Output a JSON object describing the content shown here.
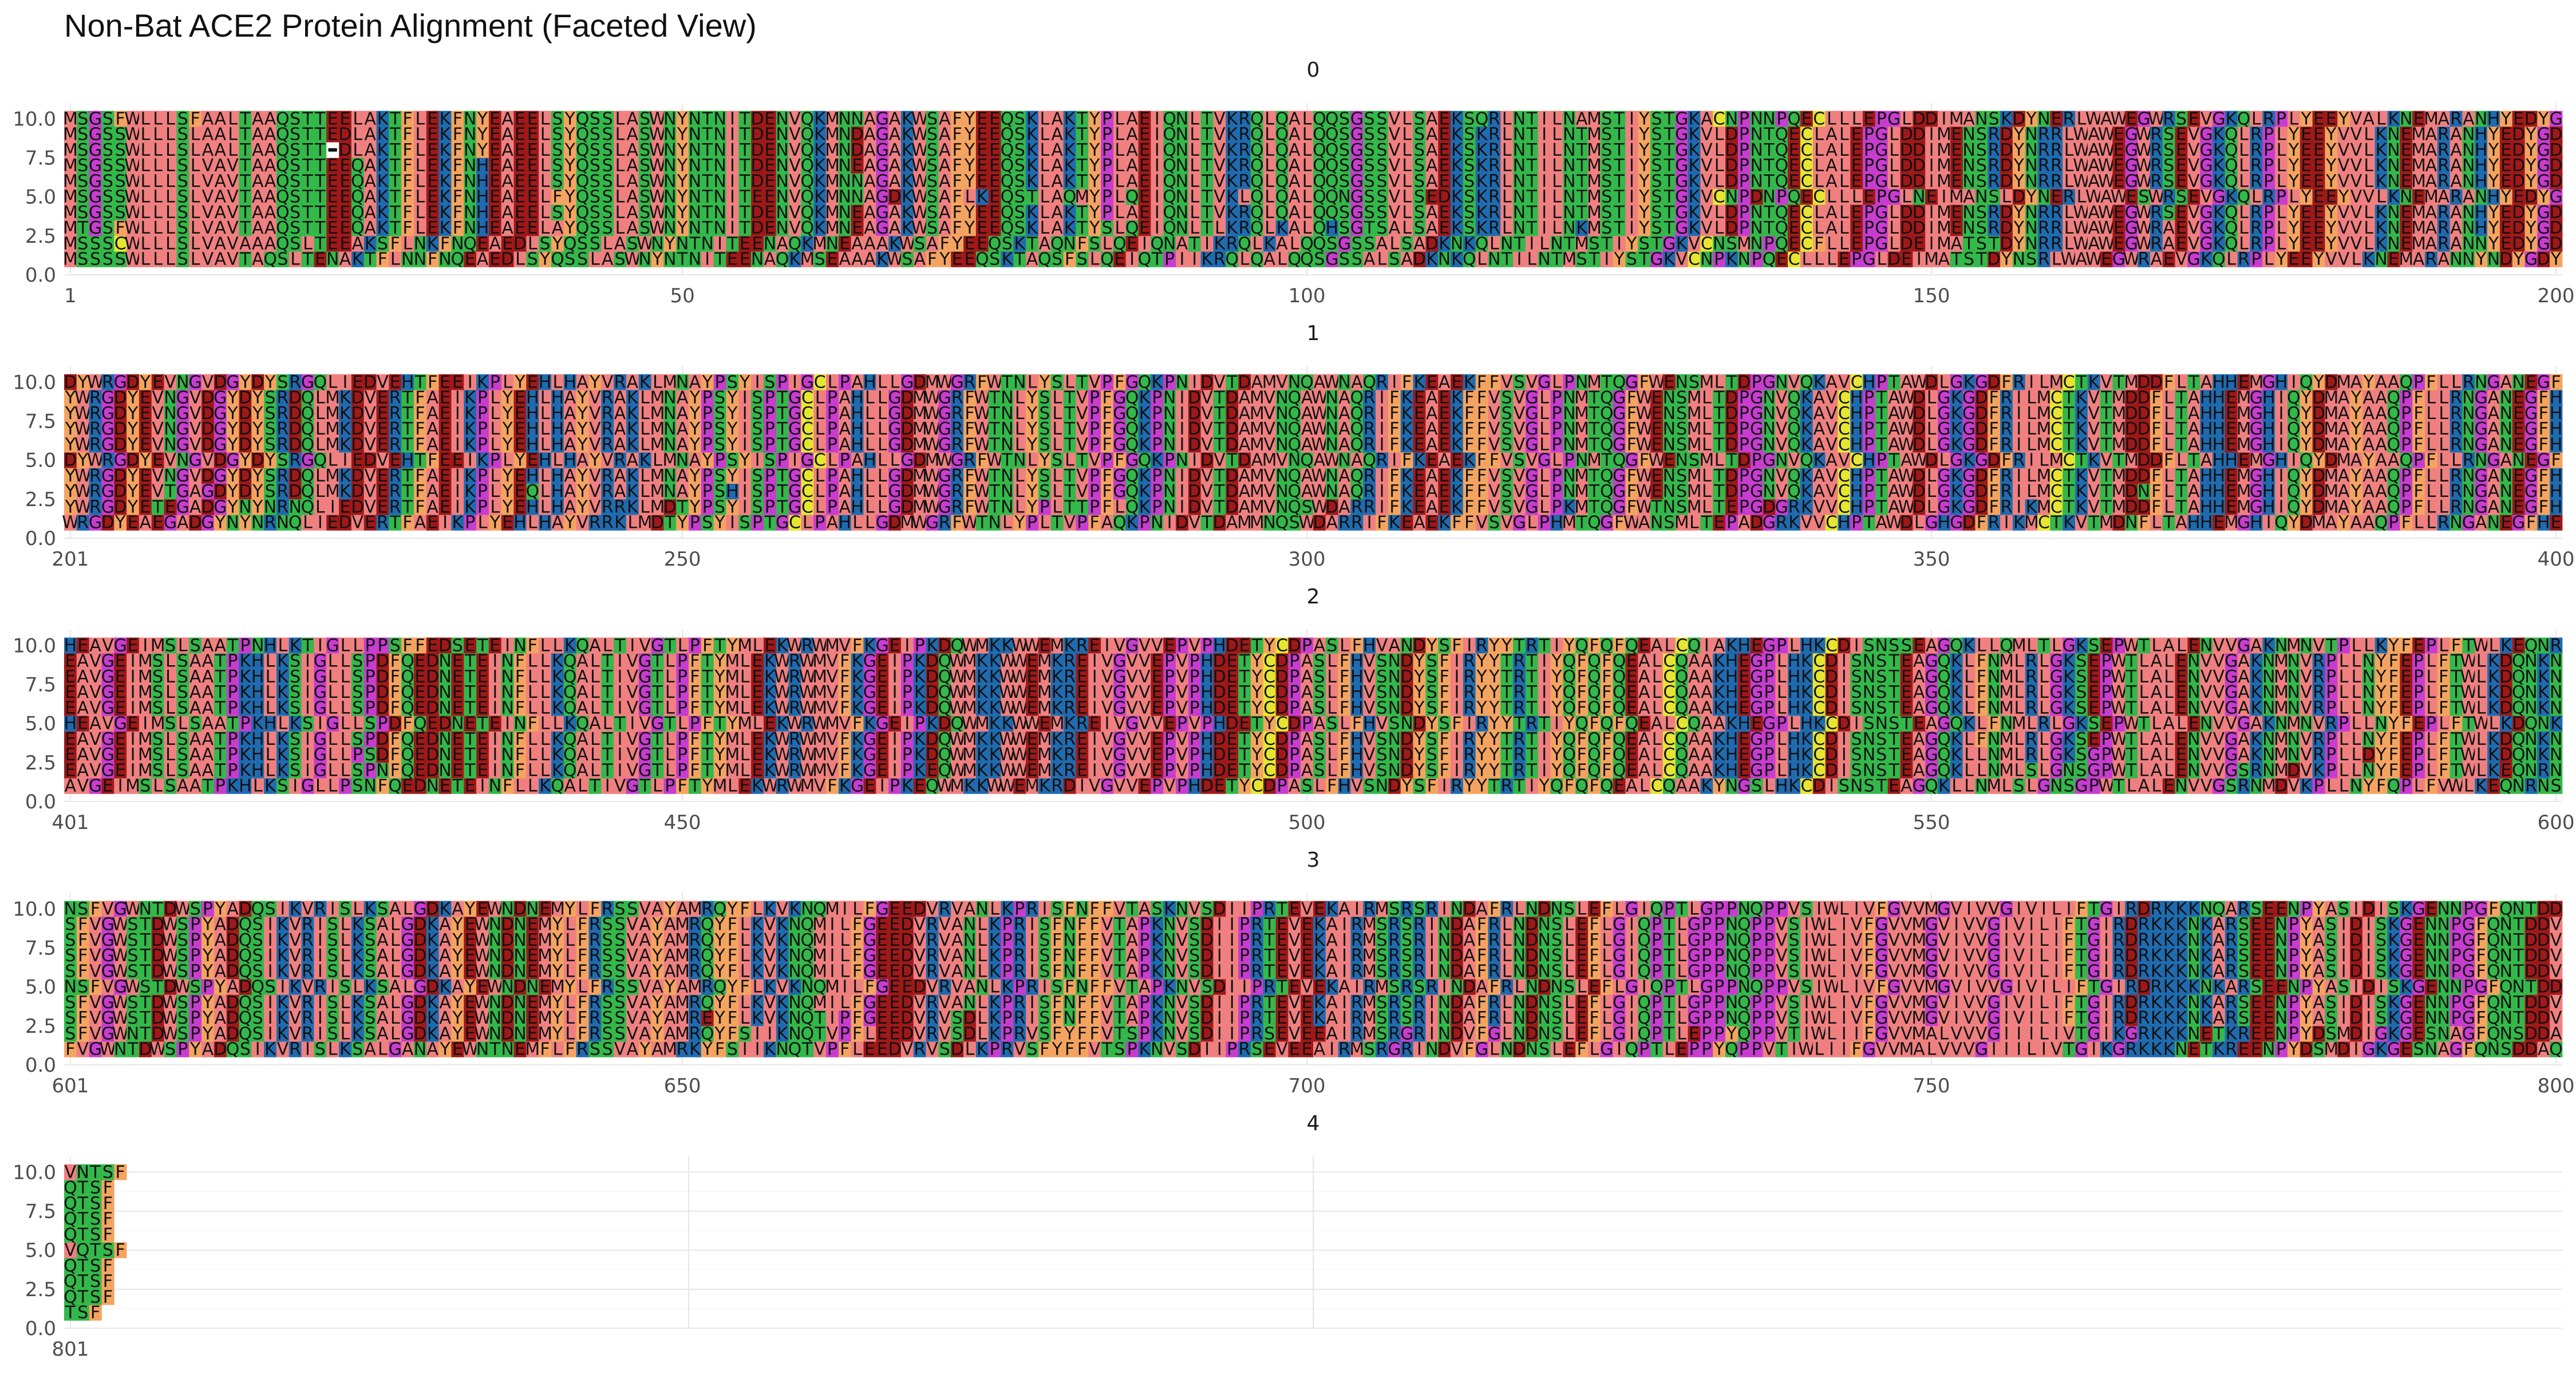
{
  "chart_data": {
    "type": "heatmap",
    "title": "Non-Bat ACE2 Protein Alignment (Faceted View)",
    "xlabel": "",
    "ylabel": "",
    "grid": true,
    "facet_labels": [
      "0",
      "1",
      "2",
      "3",
      "4"
    ],
    "facet_ranges": [
      [
        1,
        200
      ],
      [
        201,
        400
      ],
      [
        401,
        600
      ],
      [
        601,
        800
      ],
      [
        801,
        1000
      ]
    ],
    "x_tick_labels": [
      [
        "1",
        "50",
        "100",
        "150",
        "200"
      ],
      [
        "201",
        "250",
        "300",
        "350",
        "400"
      ],
      [
        "401",
        "450",
        "500",
        "550",
        "600"
      ],
      [
        "601",
        "650",
        "700",
        "750",
        "800"
      ],
      [
        "801"
      ]
    ],
    "y_tick_labels": [
      "0.0",
      "2.5",
      "5.0",
      "7.5",
      "10.0"
    ],
    "ylim": [
      0,
      11
    ],
    "row_y_values": [
      1,
      2,
      3,
      4,
      5,
      6,
      7,
      8,
      9,
      10
    ],
    "colors": {
      "A": "#f08080",
      "V": "#f08080",
      "L": "#f08080",
      "I": "#f08080",
      "M": "#f08080",
      "W": "#f08080",
      "F": "#f4a460",
      "Y": "#f4a460",
      "S": "#33b84a",
      "T": "#33b84a",
      "N": "#33b84a",
      "Q": "#33b84a",
      "K": "#1f6bb0",
      "R": "#1f6bb0",
      "H": "#1f6bb0",
      "D": "#a01818",
      "E": "#a01818",
      "G": "#c83cd0",
      "P": "#c83cd0",
      "C": "#e6e632",
      "-": "#ffffff"
    },
    "sequences": [
      "MSSSSWLLLSLVAVTAQSLTENAKTFLNNFNQEAEDLSYQSSLASWNYNTNITEENAQKMSEAAAKWSAFYEEQSKTAQSFSLQEIQTPIIKRQLQALQQSGSSALSADKNKQLNTILNTMSTIYSTGKVCNPKNPQECLLLEPGLDEIMATSTDYNSRLWAWEGWRAEVGKQLRPLYEEYVVLKNEMARANNYNDYGDYWRGDYEAEGADGYNYNRNQLIEDVERTFAEIKPLYEHLHAYVRRKLMDTYPSYISPTGCLPAHLLGDMWGRFWTNLYPLTVPFAQKPNIDVTDAMMNQSWDARRIFKEAEKFFVSVGLPHMTQGFWANSMLTEPADGRKVVCHPTAWDLGHGDFRIKMCTKVTMDNFLTAHHEMGHIQYDMAYAAQPFLLRNGANEGFHEAVGEIMSLSAATPKHLKSIGLLPSNFQEDNETEINFLLKQALTIVGTLPFTYMLEKWRWMVFKGEIPKEQWMKKWWEMKRDIVGVVEPVPHDETYCDPASLFHVSNDYSFIRYYTRTIYQFQFQEALCQAAKYNGSLHKCDISNSTEAGQKLLNMLSLGNSGPWTLALENVVGSRNMDVKPLLNYFQPLFVWLKEQNRNSFVGWNTDWSPYADQSIKVRISLKSALGANAYEWNTNEMFLFRSSVAYAMRKYFSIIKNQTVPFLEEDVRVSDLKPRVSFYFFVTSPKNVSDIIPRSEVEEAIRMSRGRINDVFGLNDNSLEFLGIQPTLEPPYQPPVTIWLIIFGVVMALVVVGIIILIVTGIKGRKKKNETKREENPYDSMDIGKGESNAGFQNSDDAQTSF",
      "MSSSCWLLLSLVAVAAAQSLTEEAKSFLNKFNQEAEDLSYQSSLASWNYNTNITEENAQKMNEAAAKWSAFYEEQSKTAQNFSLQEIQNATIKRQLKALQQSGSSALSADKNKQLNTILNTMSTIYSTGKVCNSMNPQECFLLEPGLDEIMATSTDYNRRLWAWEGWRAEVGKQLRPLYEEYVVLKNEMARANNYEDYGDYWRGDYETEGADGYNYNRNQLIEDVERTFAEIKPLYEHLHAYVRRKLMDTYPSYISPTGCLPAHLLGDMWGRFWTNLYPLTTPFLQKPNIDVTDAMVNQSWDARRIFKEAEKFFVSVGLPKMTQGFWTNSMLTEPGDGRKVVCHPTAWDLGKGDFRIKMCTKVTMDDFLTAHHEMGHIQYDMAYAAQPFLLRNGANEGFHEAVGEIMSLSAATPKHLKSIGLLSPNFQEDNETEINFLLKQALTIVGTLPFTYMLEKWRWMVFKGEIPKEQWMKKWWEMKREIVGVVEPVPHDETYCDPASLFHVSNDYSFIRYYTRTIYQFQFQEALCQAAKHEGPLHKCDISNSTEAGQKLLNMLSLGNSGPWTLALENVVGSRNMDVKPLLNYFEPLFTWLKEQNRNSFVGWNTDWSPYADQSIKVRISLKSALGDKAYEWNDNEMYLFRSSVAYAMRQYFSIIKNQTVPFLEEDVRVSDLKPRVSFYFFVTSPKNVSDIIPRSEVEEAIRMSRGRINDVFGLNDNSLEFLGIQPTLEPPYQPPVTIWLIIFGVVMALVVVGIIILIVTGIKGRKKKNETKREENPYDSMDIGKGESNAGFQNSDDAQTSF",
      "MTGSFWLLLSLVAVTAAQSTTEEQAKTFLEKFNHEAEELAYQSSLASWNYNTNITDENVQKMNEAGAKWSAFYEEQSKLAKTYSLQEIQNLTLKRQLKALQHSGTSALSAEKSKRLNTILNKMSTIYSTGKVLDPNTQECLALEPGLDDIMENSRDYNRRLWAWEGWRAEVGKQLRPLYEEYVVLKNEMARANHYEDYGDYWRGDYEVTGAGDYDYSRDQLMKDVERTFAEIKPLYEQLHAYVRAKLMNAYPSHISPTGCLPAHLLGDMWGRFWTNLYSLTVPFGQKPNIDVTDAMVNQAWNAQRIFKEAEKFFVSVGLPNMTQGFWENSMLTDPGNVQKAVCHPTAWDLGKGDFRILMCTKVTMDNFLTAHHEMGHIQYDMAYAAQPFLLRNGANEGFHEAVGEIMSLSAATPKHLKSIGLLPSDFQEDNETEINFLLKQALTIVGTLPFTYMLEKWRWMVFKGEIPKDQWMKKWWEMKREIVGVVEPVPHDETYCDPASLFHVSNDYSFIRYYTRTIYQFQFQEALCQAAKHEGPLHKCDISNSTEAGQKLLNMLRLGKSGPWTLALENVVGAKNMNVRPLLDYFEPLFTWLKDQNKNSFVGWSTDWSPYADQSIKVRISLKSALGDKAYEWNDNEMYLFRSSVAYAMREYFLKVKNQTIPFGEEDVRVSDLKPRISFNFFVTAPKNVSDIIPRTEVEKAIRMSRSRINDAFRLNDNSLEFLGIQPTLGPPNQPPVSIWLIVFGVVMGVIVVGIVILIFTGIRDRKKKNKARSEENPYASIDISKGENNPGFQNTDDVQTSF",
      "MSGSSWLLLSLVAVTAAQSTTEEQAKTFLEKFNHEAEELSYQSSLASWNYNTNITDENVQKMNEAGAKWSAFYEEQSKLAKTYPLAEIQNLTVKRQLQALQQSGSSVLSAEKSKRLNTILNTMSTIYSTGKVLDPNTQECLALEPGLDDIMENSRDYNRRLWAWEGWRSEVGKQLRPLYEEYVVLKNEMARANHYEDYGDYWRGDYEVNGVDGYDYSRDQLMKDVERTFAEIKPLYEHLHAYVRAKLMNAYPSYISPTGCLPAHLLGDMWGRFWTNLYSLTVPFGQKPNIDVTDAMVNQAWNAQRIFKEAEKFFVSVGLPNMTQGFWENSMLTDPGNVQKAVCHPTAWDLGKGDFRILMCTKVTMDDFLTAHHEMGHIQYDMAYAAQPFLLRNGANEGFHEAVGEIMSLSAATPKHLKSIGLLSPDFQEDNETEINFLLKQALTIVGTLPFTYMLEKWRWMVFKGEIPKDQWMKKWWEMKREIVGVVEPVPHDETYCDPASLFHVSNDYSFIRYYTRTIYQFQFQEALCQAAKHEGPLHKCDISNSTEAGQKLFNMLRLGKSEPWTLALENVVGAKNMNVRPLLNYFEPLFTWLKDQNKNSFVGWSTDWSPYADQSIKVRISLKSALGDKAYEWNDNEMYLFRSSVAYAMRQYFLKVKNQMILFGEEDVRVANLKPRISFNFFVTAPKNVSDIIPRTEVEKAIRMSRSRINDAFRLNDNSLEFLGIQPTLGPPNQPPVSIWLIVFGVVMGVIVVGIVILIFTGIRDRKKKNKARSEENPYASIDISKGENNPGFQNTDDVQTSF",
      "MSGSSWLLLSLVAVTAAQSTTEEQAKTFLEKFNHEAEELFYQSSLASWNYNTNITEENVQKMNNAGDKWSAFLKEQSTLAQMYPLQEIQNLTVKLQLQALQQNGSSVLSEDKSKRLNTILNTMSTIYSTGKVCNPDNPQECLLLEPGLNEIMANSLDYNERLWAWESWRSEVGKQLRPLYEEYVVLKNEMARANHYEDYGDYWRGDYEVNGVDGYDYSRGQLIEDVEHTFEEIKPLYEHLHAYVRAKLMNAYPSYISPIGCLPAHLLGDMWGRFWTNLYSLTVPFGQKPNIDVTDAMVNQAWNAQRIFKEAEKFFVSVGLPNMTQGFWENSMLTDPGNVQKAVCHPTAWDLGKGDFRILMCTKVTMDDFLTAHHEMGHIQYDMAYAAQPFLLRNGANEGFHEAVGEIMSLSAATPKHLKSIGLLSPDFQEDNETEINFLLKQALTIVGTLPFTYMLEKWRWMVFKGEIPKDQWMKKWWEMKREIVGVVEPVPHDETYCDPASLFHVSNDYSFIRYYTRTIYQFQFQEALCQAAKHEGPLHKCDISNSTEAGQKLFNMLRLGKSEPWTLALENVVGAKNMNVRPLLNYFEPLFTWLKDQNKNSFVGWSTDWSPYADQSIKVRISLKSALGDKAYEWNDNEMYLFRSSVAYAMRQYFLKVKNQMILFGEEDVRVANLKPRISFNFFVTAPKNVSDIIPRTEVEKAIRMSRSRINDAFRLNDNSLEFLGIQPTLGPPNQPPVSIWLIVFGVVMGVIVVGIVILIFTGIRDRKKKNKARSEENPYASIDISKGENNPGFQNTDDVQTSF",
      "MSGSSWLLLSLVAVTAAQSTTEEQAKTFLEKFNHEAEELSYQSSLASWNYNTNITDENVQKMNNAGAKWSAFYEEQSKLAKTYPLAEIQNLTVKRQLQALQQSGSSVLSAEKSKRLNTILNTMSTIYSTGKVLDPNTQECLALEPGLDDIMENSRDYNRRLWAWEGWRSEVGKQLRPLYEEYVVLKNEMARANHYEDYGDYWRGDYEVNGVDGYDYSRDQLMKDVERTFAEIKPLYEHLHAYVRAKLMNAYPSYISPTGCLPAHLLGDMWGRFWTNLYSLTVPFGQKPNIDVTDAMVNQAWNAQRIFKEAEKFFVSVGLPNMTQGFWENSMLTDPGNVQKAVCHPTAWDLGKGDFRILMCTKVTMDDFLTAHHEMGHIQYDMAYAAQPFLLRNGANEGFHEAVGEIMSLSAATPKHLKSIGLLSPDFQEDNETEINFLLKQALTIVGTLPFTYMLEKWRWMVFKGEIPKDQWMKKWWEMKREIVGVVEPVPHDETYCDPASLFHVSNDYSFIRYYTRTIYQFQFQEALCQAAKHEGPLHKCDISNSTEAGQKLFNMLRLGKSEPWTLALENVVGAKNMNVRPLLNYFEPLFTWLKDQNKNSFVGWSTDWSPYADQSIKVRISLKSALGDKAYEWNDNEMYLFRSSVAYAMRQYFLKVKNQMILFGEEDVRVANLKPRISFNFFVTAPKNVSDIIPRTEVEKAIRMSRSRINDAFRLNDNSLEFLGIQPTLGPPNQPPVSIWLIVFGVVMGVIVVGIVILIFTGIRDRKKKNKARSEENPYASIDISKGENNPGFQNTDDVQTSF",
      "MSGSSWLLLSLVAVTAAQSTTEEQAKTFLEKFNHEAEELSYQSSLASWNYNTNITDENVQKMNEAGAKWSAFYEEQSKLAKTYPLAEIQNLTVKRQLQALQQSGSSVLSAEKSKRLNTILNTMSTIYSTGKVLDPNTQECLALEPGLDDIMENSRDYNRRLWAWEGWRSEVGKQLRPLYEEYVVLKNEMARANHYEDYGDYWRGDYEVNGVDGYDYSRDQLMKDVERTFAEIKPLYEHLHAYVRAKLMNAYPSYISPTGCLPAHLLGDMWGRFWTNLYSLTVPFGQKPNIDVTDAMVNQAWNAQRIFKEAEKFFVSVGLPNMTQGFWENSMLTDPGNVQKAVCHPTAWDLGKGDFRILMCTKVTMDDFLTAHHEMGHIQYDMAYAAQPFLLRNGANEGFHEAVGEIMSLSAATPKHLKSIGLLSPDFQEDNETEINFLLKQALTIVGTLPFTYMLEKWRWMVFKGEIPKDQWMKKWWEMKREIVGVVEPVPHDETYCDPASLFHVSNDYSFIRYYTRTIYQFQFQEALCQAAKHEGPLHKCDISNSTEAGQKLFNMLRLGKSEPWTLALENVVGAKNMNVRPLLNYFEPLFTWLKDQNKNSFVGWSTDWSPYADQSIKVRISLKSALGDKAYEWNDNEMYLFRSSVAYAMRQYFLKVKNQMILFGEEDVRVANLKPRISFNFFVTAPKNVSDIIPRTEVEKAIRMSRSRINDAFRLNDNSLEFLGIQPTLGPPNQPPVSIWLIVFGVVMGVIVVGIVILIFTGIRDRKKKNKARSEENPYASIDISKGENNPGFQNTDDVQTSF",
      "MSGSSWLLLSLAALTAAQSTT-DLAKTFLEKFNYEAEELSYQSSLASWNYNTNITDENVQKMNDAGAKWSAFYEEQSKLAKTYPLAEIQNLTVKRQLQALQQSGSSVLSAEKSKRLNTILNTMSTIYSTGKVLDPNTQECLALEPGLDDIMENSRDYNRRLWAWEGWRSEVGKQLRPLYEEYVVLKNEMARANHYEDYGDYWRGDYEVNGVDGYDYSRDQLMKDVERTFAEIKPLYEHLHAYVRAKLMNAYPSYISPTGCLPAHLLGDMWGRFWTNLYSLTVPFGQKPNIDVTDAMVNQAWNAQRIFKEAEKFFVSVGLPNMTQGFWENSMLTDPGNVQKAVCHPTAWDLGKGDFRILMCTKVTMDDFLTAHHEMGHIQYDMAYAAQPFLLRNGANEGFHEAVGEIMSLSAATPKHLKSIGLLSPDFQEDNETEINFLLKQALTIVGTLPFTYMLEKWRWMVFKGEIPKDQWMKKWWEMKREIVGVVEPVPHDETYCDPASLFHVSNDYSFIRYYTRTIYQFQFQEALCQAAKHEGPLHKCDISNSTEAGQKLFNMLRLGKSEPWTLALENVVGAKNMNVRPLLNYFEPLFTWLKDQNKNSFVGWSTDWSPYADQSIKVRISLKSALGDKAYEWNDNEMYLFRSSVAYAMRQYFLKVKNQMILFGEEDVRVANLKPRISFNFFVTAPKNVSDIIPRTEVEKAIRMSRSRINDAFRLNDNSLEFLGIQPTLGPPNQPPVSIWLIVFGVVMGVIVVGIVILIFTGIRDRKKKNKARSEENPYASIDISKGENNPGFQNTDDVQTSF",
      "MSGSSWLLLSLAALTAAQSTTEDLAKTFLEKFNYEAEELSYQSSLASWNYNTNITDENVQKMNDAGAKWSAFYEEQSKLAKTYPLAEIQNLTVKRQLQALQQSGSSVLSAEKSKRLNTILNTMSTIYSTGKVLDPNTQECLALEPGLDDIMENSRDYNRRLWAWEGWRSEVGKQLRPLYEEYVVLKNEMARANHYEDYGDYWRGDYEVNGVDGYDYSRDQLMKDVERTFAEIKPLYEHLHAYVRAKLMNAYPSYISPTGCLPAHLLGDMWGRFWTNLYSLTVPFGQKPNIDVTDAMVNQAWNAQRIFKEAEKFFVSVGLPNMTQGFWENSMLTDPGNVQKAVCHPTAWDLGKGDFRILMCTKVTMDDFLTAHHEMGHIQYDMAYAAQPFLLRNGANEGFHEAVGEIMSLSAATPKHLKSIGLLSPDFQEDNETEINFLLKQALTIVGTLPFTYMLEKWRWMVFKGEIPKDQWMKKWWEMKREIVGVVEPVPHDETYCDPASLFHVSNDYSFIRYYTRTIYQFQFQEALCQAAKHEGPLHKCDISNSTEAGQKLFNMLRLGKSEPWTLALENVVGAKNMNVRPLLNYFEPLFTWLKDQNKNSFVGWSTDWSPYADQSIKVRISLKSALGDKAYEWNDNEMYLFRSSVAYAMRQYFLKVKNQMILFGEEDVRVANLKPRISFNFFVTAPKNVSDIIPRTEVEKAIRMSRSRINDAFRLNDNSLEFLGIQPTLGPPNQPPVSIWLIVFGVVMGVIVVGIVILIFTGIRDRKKKNKARSEENPYASIDISKGENNPGFQNTDDVQTSF",
      "MSGSFWLLLSFAALTAAQSTTEELAKTFLEKFNYEAEELSYQSSLASWNYNTNITDENVQKMNNAGAKWSAFYEEQSKLAKTYPLAEIQNLTVKRQLQALQQSGSSVLSAEKSQRLNTILNAMSTIYSTGKACNPNNPQECLLLEPGLDDIMANSKDYNERLWAWEGWRSEVGKQLRPLYEEYVALKNEMARANHYEDYGDYWRGDYEVNGVDGYDYSRGQLIEDVEHTFEEIKPLYEHLHAYVRAKLMNAYPSYISPIGCLPAHLLGDMWGRFWTNLYSLTVPFGQKPNIDVTDAMVNQAWNAQRIFKEAEKFFVSVGLPNMTQGFWENSMLTDPGNVQKAVCHPTAWDLGKGDFRILMCTKVTMDDFLTAHHEMGHIQYDMAYAAQPFLLRNGANEGFHEAVGEIMSLSAATPNHLKTIGLLPPSFFEDSETEINFLLKQALTIVGTLPFTYMLEKWRWMVFKGEIPKDQWMKKWWEMKREIVGVVEPVPHDETYCDPASLFHVANDYSFIRYYTRTIYQFQFQEALCQIAKHEGPLHKCDISNSSEAGQKLLQMLTLGKSEPWTLALENVVGAKNMNVTPLLKYFEPLFTWLKEQNRNSFVGWNTDWSPYADQSIKVRISLKSALGDKAYEWNDNEMYLFRSSVAYAMRQYFLKVKNQMILFGEEDVRVANLKPRISFNFFVTASKNVSDIIPRTEVEKAIRMSRSRINDAFRLNDNSLEFLGIQPTLGPPNQPPVSIWLIVFGVVMGVIVVGIVILIFTGIRDRKKKNQARSEENPYASIDISKGENNPGFQNTDDVNTSF"
    ]
  }
}
